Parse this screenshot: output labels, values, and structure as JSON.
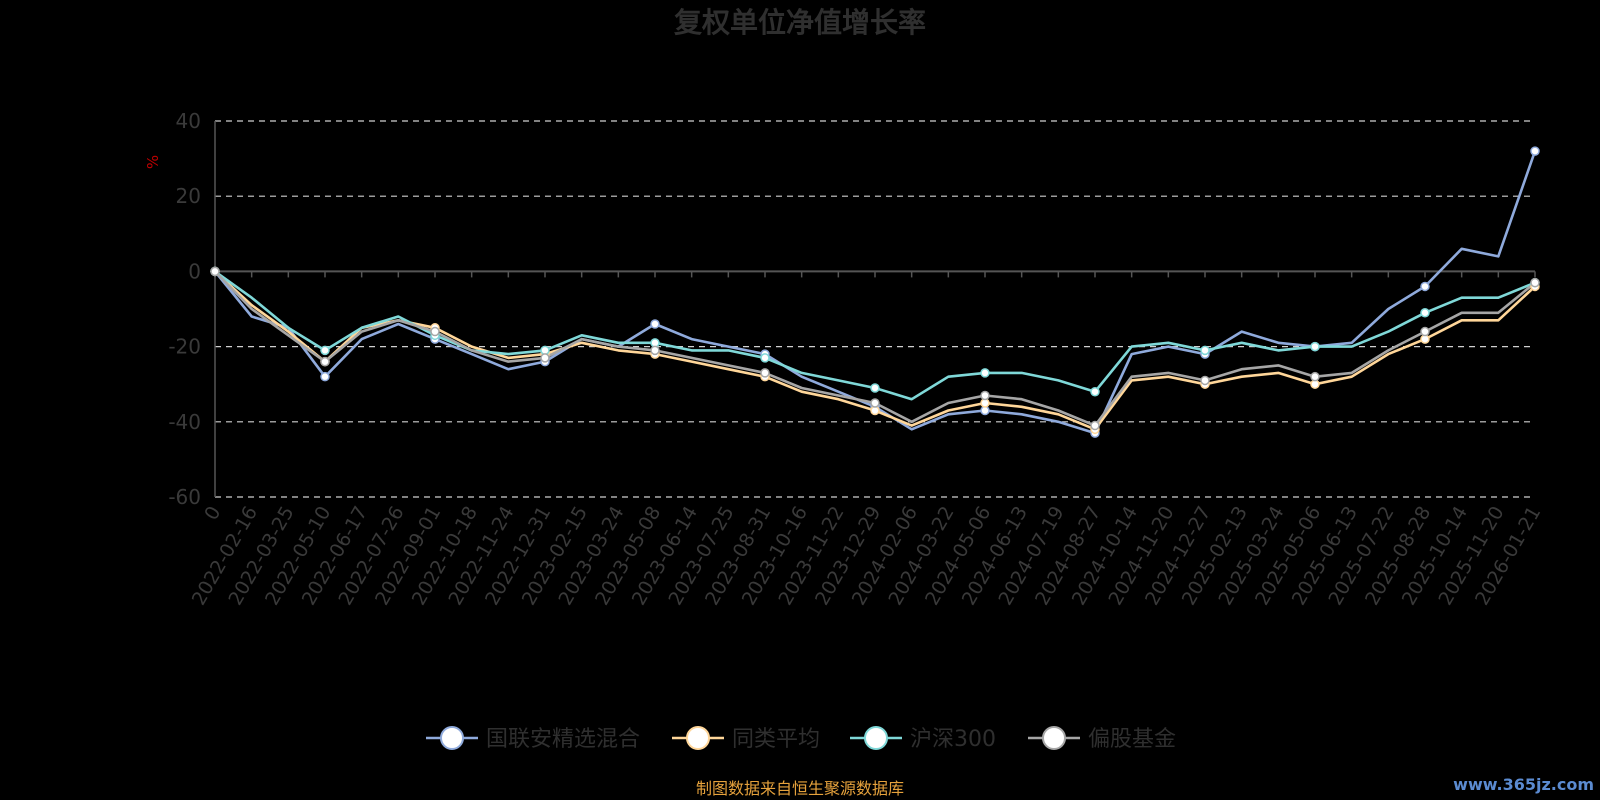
{
  "chart_data": {
    "type": "line",
    "title": "复权单位净值增长率",
    "ylabel": "%",
    "ylim": [
      -60,
      40
    ],
    "y_ticks": [
      -60,
      -40,
      -20,
      0,
      20,
      40
    ],
    "grid": "horizontal-dashed",
    "legend_position": "bottom",
    "x_tick_labels": [
      "0",
      "2022-02-16",
      "2022-03-25",
      "2022-05-10",
      "2022-06-17",
      "2022-07-26",
      "2022-09-01",
      "2022-10-18",
      "2022-11-24",
      "2022-12-31",
      "2023-02-15",
      "2023-03-24",
      "2023-05-08",
      "2023-06-14",
      "2023-07-25",
      "2023-08-31",
      "2023-10-16",
      "2023-11-22",
      "2023-12-29",
      "2024-02-06",
      "2024-03-22",
      "2024-05-06",
      "2024-06-13",
      "2024-07-19",
      "2024-08-27",
      "2024-10-14",
      "2024-11-20",
      "2024-12-27",
      "2025-02-13",
      "2025-03-24",
      "2025-05-06",
      "2025-06-13",
      "2025-07-22",
      "2025-08-28",
      "2025-10-14",
      "2025-11-20",
      "2026-01-21"
    ],
    "x": [
      0,
      1,
      2,
      3,
      4,
      5,
      6,
      7,
      8,
      9,
      10,
      11,
      12,
      13,
      14,
      15,
      16,
      17,
      18,
      19,
      20,
      21,
      22,
      23,
      24,
      25,
      26,
      27,
      28,
      29,
      30,
      31,
      32,
      33,
      34,
      35,
      36
    ],
    "series": [
      {
        "name": "国联安精选混合",
        "color": "#8faadc",
        "values": [
          0,
          -12,
          -15,
          -28,
          -18,
          -14,
          -18,
          -22,
          -26,
          -24,
          -18,
          -20,
          -14,
          -18,
          -20,
          -22,
          -28,
          -32,
          -36,
          -42,
          -38,
          -37,
          -38,
          -40,
          -43,
          -22,
          -20,
          -22,
          -16,
          -19,
          -20,
          -19,
          -10,
          -4,
          6,
          4,
          32
        ]
      },
      {
        "name": "同类平均",
        "color": "#ffd699",
        "values": [
          0,
          -9,
          -16,
          -24,
          -15,
          -13,
          -15,
          -20,
          -23,
          -22,
          -19,
          -21,
          -22,
          -24,
          -26,
          -28,
          -32,
          -34,
          -37,
          -41,
          -37,
          -35,
          -36,
          -38,
          -42,
          -29,
          -28,
          -30,
          -28,
          -27,
          -30,
          -28,
          -22,
          -18,
          -13,
          -13,
          -4
        ]
      },
      {
        "name": "沪深300",
        "color": "#7fd8d8",
        "values": [
          0,
          -7,
          -15,
          -21,
          -15,
          -12,
          -17,
          -21,
          -22,
          -21,
          -17,
          -19,
          -19,
          -21,
          -21,
          -23,
          -27,
          -29,
          -31,
          -34,
          -28,
          -27,
          -27,
          -29,
          -32,
          -20,
          -19,
          -21,
          -19,
          -21,
          -20,
          -20,
          -16,
          -11,
          -7,
          -7,
          -3
        ]
      },
      {
        "name": "偏股基金",
        "color": "#a6a6a6",
        "values": [
          0,
          -10,
          -17,
          -24,
          -16,
          -13,
          -16,
          -21,
          -24,
          -23,
          -18,
          -20,
          -21,
          -23,
          -25,
          -27,
          -31,
          -33,
          -35,
          -40,
          -35,
          -33,
          -34,
          -37,
          -41,
          -28,
          -27,
          -29,
          -26,
          -25,
          -28,
          -27,
          -21,
          -16,
          -11,
          -11,
          -3
        ]
      }
    ],
    "source_note": "制图数据来自恒生聚源数据库",
    "watermark": "www.365jz.com"
  }
}
